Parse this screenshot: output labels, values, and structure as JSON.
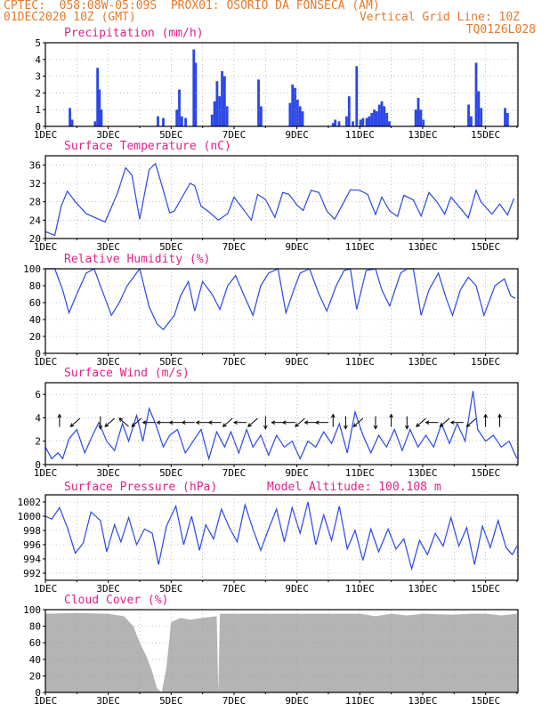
{
  "header": {
    "line1": "CPTEC:  058:08W-05:09S  PROX01: OSORIO DA FONSECA (AM)",
    "line2": "01DEC2020 10Z (GMT)",
    "grid_note": "Vertical Grid Line: 10Z",
    "code": "TQ0126L028",
    "color": "#e6782a"
  },
  "colors": {
    "title": "#e0218a",
    "series": "#2a46e8",
    "cloud": "#b4b4b4",
    "grid": "#999999"
  },
  "chart_data": [
    {
      "type": "bar",
      "title": "Precipitation (mm/h)",
      "ylim": [
        0,
        5
      ],
      "yticks": [
        "0",
        "1",
        "2",
        "3",
        "4",
        "5"
      ],
      "xticks": [
        "1DEC",
        "3DEC",
        "5DEC",
        "7DEC",
        "9DEC",
        "11DEC",
        "13DEC",
        "15DEC"
      ],
      "bars": [
        [
          1.78,
          1.1
        ],
        [
          1.85,
          0.4
        ],
        [
          2.58,
          0.3
        ],
        [
          2.66,
          3.5
        ],
        [
          2.72,
          2.2
        ],
        [
          2.78,
          1.0
        ],
        [
          4.58,
          0.6
        ],
        [
          4.75,
          0.5
        ],
        [
          5.18,
          1.0
        ],
        [
          5.26,
          2.2
        ],
        [
          5.34,
          0.6
        ],
        [
          5.46,
          0.5
        ],
        [
          5.72,
          4.6
        ],
        [
          5.78,
          3.8
        ],
        [
          6.3,
          0.7
        ],
        [
          6.38,
          1.5
        ],
        [
          6.46,
          2.7
        ],
        [
          6.54,
          1.8
        ],
        [
          6.62,
          3.3
        ],
        [
          6.7,
          3.0
        ],
        [
          6.78,
          1.2
        ],
        [
          7.78,
          2.8
        ],
        [
          7.86,
          1.2
        ],
        [
          8.78,
          1.4
        ],
        [
          8.86,
          2.5
        ],
        [
          8.94,
          2.3
        ],
        [
          9.02,
          1.6
        ],
        [
          9.1,
          1.2
        ],
        [
          9.18,
          0.9
        ],
        [
          10.15,
          0.2
        ],
        [
          10.22,
          0.4
        ],
        [
          10.34,
          0.3
        ],
        [
          10.58,
          0.6
        ],
        [
          10.66,
          1.8
        ],
        [
          10.78,
          0.3
        ],
        [
          10.9,
          3.6
        ],
        [
          11.02,
          0.4
        ],
        [
          11.1,
          0.5
        ],
        [
          11.22,
          0.5
        ],
        [
          11.3,
          0.6
        ],
        [
          11.38,
          0.8
        ],
        [
          11.46,
          1.0
        ],
        [
          11.54,
          0.9
        ],
        [
          11.62,
          1.3
        ],
        [
          11.7,
          1.5
        ],
        [
          11.78,
          1.2
        ],
        [
          11.86,
          0.8
        ],
        [
          11.94,
          0.3
        ],
        [
          12.78,
          1.0
        ],
        [
          12.86,
          1.7
        ],
        [
          12.94,
          1.0
        ],
        [
          13.02,
          0.4
        ],
        [
          14.46,
          1.3
        ],
        [
          14.54,
          0.6
        ],
        [
          14.7,
          3.8
        ],
        [
          14.78,
          2.1
        ],
        [
          14.86,
          1.1
        ],
        [
          15.62,
          1.1
        ],
        [
          15.7,
          0.8
        ]
      ]
    },
    {
      "type": "line",
      "title": "Surface Temperature (nC)",
      "ylim": [
        20,
        38
      ],
      "yticks": [
        "20",
        "24",
        "28",
        "32",
        "36"
      ],
      "xticks": [
        "1DEC",
        "3DEC",
        "5DEC",
        "7DEC",
        "9DEC",
        "11DEC",
        "13DEC",
        "15DEC"
      ],
      "x": [
        1,
        1.3,
        1.5,
        1.7,
        1.95,
        2.3,
        2.6,
        2.9,
        3.3,
        3.55,
        3.75,
        4.0,
        4.3,
        4.5,
        4.75,
        4.95,
        5.1,
        5.35,
        5.6,
        5.75,
        5.95,
        6.2,
        6.5,
        6.8,
        7.0,
        7.3,
        7.55,
        7.75,
        8.0,
        8.3,
        8.55,
        8.75,
        9.0,
        9.2,
        9.45,
        9.7,
        9.95,
        10.2,
        10.45,
        10.7,
        11.0,
        11.25,
        11.5,
        11.7,
        11.95,
        12.2,
        12.4,
        12.7,
        12.95,
        13.2,
        13.45,
        13.7,
        13.9,
        14.2,
        14.45,
        14.7,
        14.85,
        15.2,
        15.45,
        15.7,
        15.9
      ],
      "y": [
        21.5,
        20.7,
        27.0,
        30.3,
        28.0,
        25.4,
        24.5,
        23.6,
        30.0,
        35.4,
        33.8,
        24.2,
        35.0,
        36.3,
        30.5,
        25.6,
        26.0,
        29.0,
        32.0,
        31.5,
        27.0,
        25.8,
        24.0,
        25.4,
        29.0,
        26.3,
        24.0,
        29.6,
        28.5,
        24.6,
        30.0,
        29.6,
        27.3,
        26.1,
        30.5,
        30.0,
        26.0,
        24.2,
        27.4,
        30.6,
        30.5,
        29.6,
        25.2,
        29.0,
        26.0,
        24.8,
        29.4,
        28.4,
        24.9,
        30.0,
        28.0,
        25.3,
        29.0,
        26.6,
        24.5,
        30.5,
        28.0,
        25.3,
        27.5,
        25.1,
        28.7
      ]
    },
    {
      "type": "line",
      "title": "Relative Humidity (%)",
      "ylim": [
        0,
        100
      ],
      "yticks": [
        "0",
        "20",
        "40",
        "60",
        "80",
        "100"
      ],
      "xticks": [
        "1DEC",
        "3DEC",
        "5DEC",
        "7DEC",
        "9DEC",
        "11DEC",
        "13DEC",
        "15DEC"
      ],
      "x": [
        1,
        1.3,
        1.55,
        1.75,
        2.0,
        2.3,
        2.55,
        2.8,
        3.1,
        3.35,
        3.6,
        4.0,
        4.3,
        4.55,
        4.75,
        5.1,
        5.3,
        5.55,
        5.75,
        6.0,
        6.3,
        6.55,
        6.8,
        7.05,
        7.3,
        7.6,
        7.85,
        8.1,
        8.4,
        8.65,
        8.9,
        9.1,
        9.4,
        9.7,
        9.95,
        10.25,
        10.5,
        10.7,
        10.9,
        11.2,
        11.5,
        11.7,
        11.95,
        12.3,
        12.5,
        12.7,
        12.95,
        13.2,
        13.5,
        13.75,
        13.95,
        14.2,
        14.45,
        14.7,
        14.95,
        15.3,
        15.6,
        15.8,
        15.95
      ],
      "y": [
        100,
        100,
        75,
        48,
        70,
        95,
        100,
        75,
        45,
        60,
        80,
        100,
        55,
        35,
        28,
        45,
        68,
        85,
        50,
        85,
        70,
        52,
        80,
        92,
        70,
        45,
        80,
        95,
        100,
        48,
        75,
        95,
        100,
        70,
        50,
        80,
        98,
        100,
        52,
        98,
        100,
        75,
        56,
        95,
        100,
        100,
        45,
        75,
        95,
        65,
        45,
        75,
        90,
        80,
        45,
        80,
        88,
        68,
        65
      ]
    },
    {
      "type": "line",
      "title": "Surface Wind (m/s)",
      "ylim": [
        0,
        7
      ],
      "yticks": [
        "0",
        "2",
        "4",
        "6"
      ],
      "xticks": [
        "1DEC",
        "3DEC",
        "5DEC",
        "7DEC",
        "9DEC",
        "11DEC",
        "13DEC",
        "15DEC"
      ],
      "x": [
        1,
        1.2,
        1.4,
        1.55,
        1.75,
        2.0,
        2.25,
        2.5,
        2.7,
        2.95,
        3.2,
        3.45,
        3.65,
        3.9,
        4.1,
        4.3,
        4.5,
        4.75,
        4.95,
        5.2,
        5.45,
        5.7,
        5.95,
        6.2,
        6.45,
        6.7,
        6.9,
        7.15,
        7.4,
        7.6,
        7.85,
        8.1,
        8.35,
        8.6,
        8.85,
        9.1,
        9.35,
        9.6,
        9.85,
        10.1,
        10.35,
        10.6,
        10.85,
        11.1,
        11.35,
        11.6,
        11.85,
        12.1,
        12.35,
        12.6,
        12.85,
        13.1,
        13.35,
        13.6,
        13.85,
        14.1,
        14.35,
        14.6,
        14.75,
        15.0,
        15.25,
        15.5,
        15.75,
        16.0
      ],
      "y": [
        1.5,
        0.5,
        1.0,
        0.5,
        2.2,
        3.0,
        1.0,
        2.5,
        3.6,
        2.0,
        1.2,
        3.5,
        2.0,
        4.2,
        2.0,
        4.8,
        3.5,
        1.5,
        2.5,
        3.0,
        1.0,
        2.0,
        3.0,
        0.5,
        2.8,
        1.5,
        2.8,
        1.0,
        3.0,
        1.5,
        2.5,
        0.8,
        2.5,
        1.5,
        2.0,
        0.5,
        2.0,
        1.5,
        2.8,
        1.8,
        3.5,
        1.0,
        4.5,
        2.5,
        1.0,
        2.5,
        1.5,
        3.0,
        1.2,
        3.0,
        1.5,
        2.5,
        1.5,
        3.5,
        1.8,
        3.5,
        2.0,
        6.3,
        3.0,
        2.0,
        2.5,
        1.5,
        2.0,
        0.5
      ]
    },
    {
      "type": "line",
      "title": "Surface Pressure (hPa)",
      "annotation": "Model Altitude: 100.108 m",
      "ylim": [
        991,
        1003
      ],
      "yticks": [
        "992",
        "994",
        "996",
        "998",
        "1000",
        "1002"
      ],
      "xticks": [
        "1DEC",
        "3DEC",
        "5DEC",
        "7DEC",
        "9DEC",
        "11DEC",
        "13DEC",
        "15DEC"
      ],
      "x": [
        1,
        1.2,
        1.45,
        1.7,
        1.95,
        2.2,
        2.45,
        2.75,
        2.95,
        3.2,
        3.4,
        3.65,
        3.9,
        4.15,
        4.4,
        4.6,
        4.85,
        5.15,
        5.4,
        5.65,
        5.9,
        6.1,
        6.35,
        6.6,
        6.85,
        7.1,
        7.35,
        7.6,
        7.85,
        8.1,
        8.35,
        8.6,
        8.85,
        9.1,
        9.35,
        9.6,
        9.85,
        10.1,
        10.35,
        10.6,
        10.85,
        11.1,
        11.35,
        11.6,
        11.9,
        12.15,
        12.4,
        12.65,
        12.9,
        13.15,
        13.4,
        13.65,
        13.9,
        14.15,
        14.4,
        14.65,
        14.9,
        15.15,
        15.4,
        15.65,
        15.85,
        16.0
      ],
      "y": [
        1000.0,
        999.6,
        1001.2,
        998.4,
        994.8,
        996.2,
        1000.6,
        999.4,
        995.0,
        998.8,
        996.4,
        999.8,
        996.0,
        998.2,
        997.6,
        993.2,
        998.6,
        1001.4,
        996.0,
        1000.0,
        995.2,
        998.8,
        996.8,
        1001.0,
        998.4,
        996.4,
        1001.6,
        998.2,
        995.2,
        998.2,
        1001.0,
        996.4,
        1001.2,
        997.6,
        1002.0,
        996.0,
        1000.2,
        996.6,
        1001.4,
        995.4,
        998.0,
        993.8,
        998.2,
        995.0,
        998.2,
        995.4,
        996.8,
        992.6,
        996.6,
        994.6,
        997.6,
        995.8,
        999.8,
        995.8,
        998.4,
        993.2,
        998.6,
        995.6,
        999.4,
        995.6,
        994.6,
        995.8
      ]
    },
    {
      "type": "area",
      "title": "Cloud Cover (%)",
      "ylim": [
        0,
        100
      ],
      "yticks": [
        "0",
        "20",
        "40",
        "60",
        "80",
        "100"
      ],
      "xticks": [
        "1DEC",
        "3DEC",
        "5DEC",
        "7DEC",
        "9DEC",
        "11DEC",
        "13DEC",
        "15DEC"
      ],
      "x": [
        1,
        2.0,
        3.0,
        3.5,
        3.8,
        4.0,
        4.2,
        4.4,
        4.55,
        4.7,
        4.85,
        5.0,
        5.3,
        5.6,
        6.0,
        6.45,
        6.5,
        6.55,
        7.0,
        8.0,
        9.0,
        10.0,
        11.0,
        11.5,
        12.0,
        12.5,
        13.0,
        14.0,
        14.5,
        15.0,
        15.5,
        16.0
      ],
      "y": [
        95,
        96,
        95,
        92,
        80,
        60,
        45,
        25,
        5,
        0,
        30,
        85,
        90,
        88,
        90,
        92,
        0,
        95,
        95,
        95,
        95,
        95,
        95,
        92,
        95,
        93,
        95,
        94,
        95,
        95,
        93,
        95
      ]
    }
  ],
  "wind_arrows": [
    {
      "x": 1.45,
      "dir": "up"
    },
    {
      "x": 1.95,
      "dir": "sw"
    },
    {
      "x": 2.75,
      "dir": "down"
    },
    {
      "x": 3.05,
      "dir": "sw"
    },
    {
      "x": 3.5,
      "dir": "nw"
    },
    {
      "x": 3.9,
      "dir": "sw"
    },
    {
      "x": 4.3,
      "dir": "w"
    },
    {
      "x": 4.75,
      "dir": "w"
    },
    {
      "x": 5.15,
      "dir": "w"
    },
    {
      "x": 5.55,
      "dir": "w"
    },
    {
      "x": 6.0,
      "dir": "w"
    },
    {
      "x": 6.4,
      "dir": "w"
    },
    {
      "x": 6.8,
      "dir": "sw"
    },
    {
      "x": 7.2,
      "dir": "w"
    },
    {
      "x": 7.6,
      "dir": "sw"
    },
    {
      "x": 8.0,
      "dir": "down"
    },
    {
      "x": 8.4,
      "dir": "w"
    },
    {
      "x": 8.75,
      "dir": "w"
    },
    {
      "x": 9.1,
      "dir": "sw"
    },
    {
      "x": 9.45,
      "dir": "w"
    },
    {
      "x": 9.8,
      "dir": "w"
    },
    {
      "x": 10.15,
      "dir": "up"
    },
    {
      "x": 10.55,
      "dir": "down"
    },
    {
      "x": 10.95,
      "dir": "sw"
    },
    {
      "x": 11.5,
      "dir": "down"
    },
    {
      "x": 12.0,
      "dir": "up"
    },
    {
      "x": 12.5,
      "dir": "down"
    },
    {
      "x": 12.95,
      "dir": "sw"
    },
    {
      "x": 13.3,
      "dir": "w"
    },
    {
      "x": 13.7,
      "dir": "sw"
    },
    {
      "x": 14.1,
      "dir": "w"
    },
    {
      "x": 14.55,
      "dir": "sw"
    },
    {
      "x": 15.0,
      "dir": "up"
    },
    {
      "x": 15.45,
      "dir": "up"
    }
  ]
}
